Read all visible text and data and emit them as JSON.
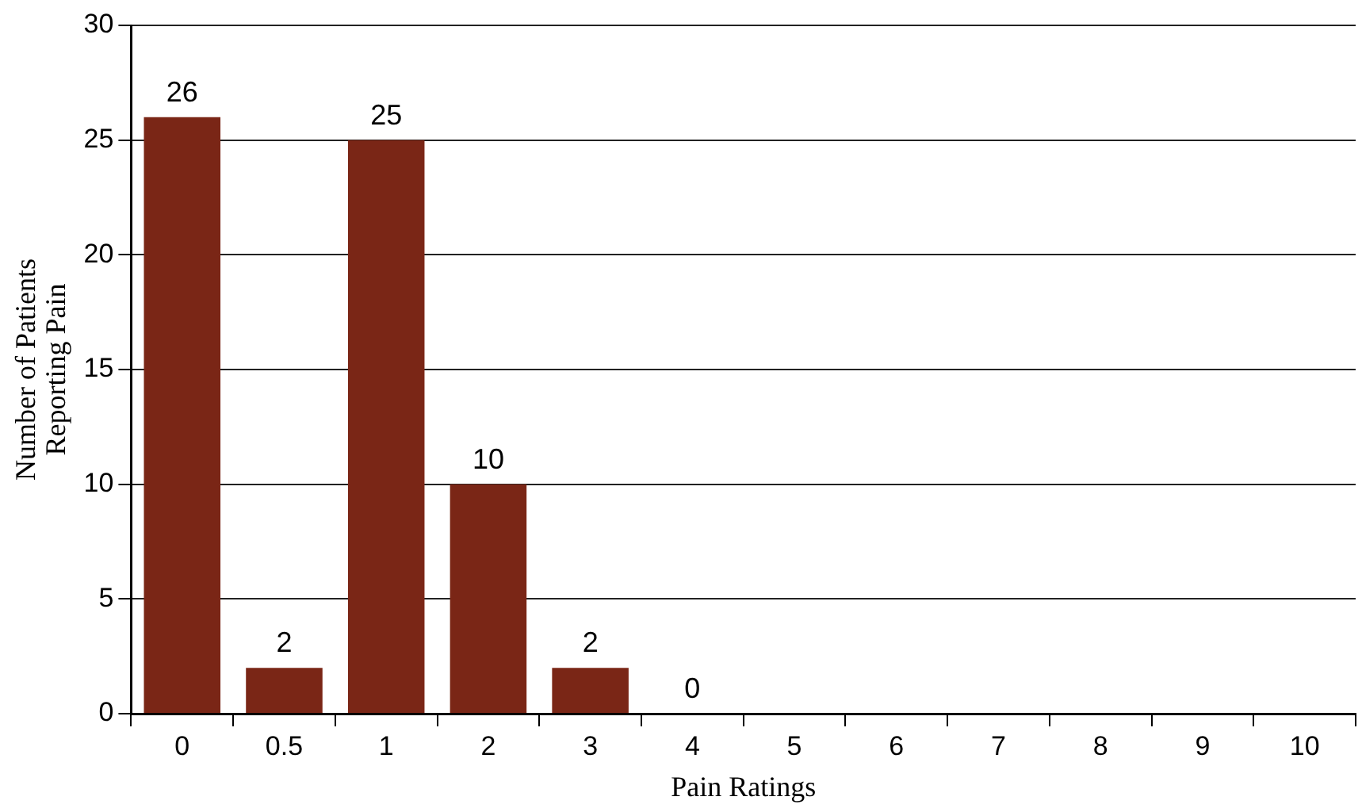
{
  "chart_data": {
    "type": "bar",
    "xlabel": "Pain Ratings",
    "ylabel": "Number of Patients\nReporting Pain",
    "categories": [
      "0",
      "0.5",
      "1",
      "2",
      "3",
      "4",
      "5",
      "6",
      "7",
      "8",
      "9",
      "10"
    ],
    "values": [
      26,
      2,
      25,
      10,
      2,
      0,
      0,
      0,
      0,
      0,
      0,
      0
    ],
    "value_labels": [
      "26",
      "2",
      "25",
      "10",
      "2",
      "0",
      null,
      null,
      null,
      null,
      null,
      null
    ],
    "color": "#7a2616",
    "ylim": [
      0,
      30
    ],
    "yticks": [
      0,
      5,
      10,
      15,
      20,
      25,
      30
    ],
    "grid": "y",
    "legend": false
  }
}
